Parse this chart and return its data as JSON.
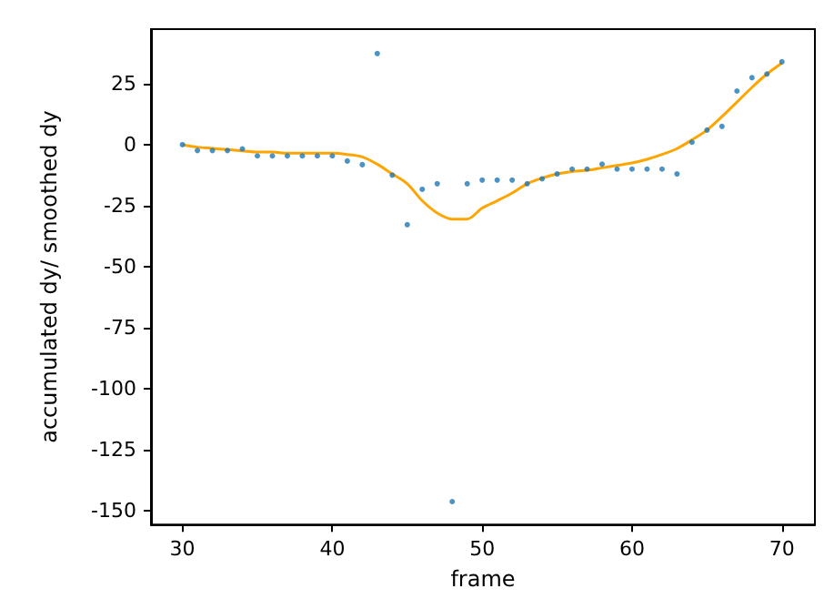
{
  "chart_data": {
    "type": "scatter",
    "xlabel": "frame",
    "ylabel": "accumulated dy/ smoothed dy",
    "x": [
      30,
      31,
      32,
      33,
      34,
      35,
      36,
      37,
      38,
      39,
      40,
      41,
      42,
      43,
      44,
      45,
      46,
      47,
      48,
      49,
      50,
      51,
      52,
      53,
      54,
      55,
      56,
      57,
      58,
      59,
      60,
      61,
      62,
      63,
      64,
      65,
      66,
      67,
      68,
      69,
      70
    ],
    "series": [
      {
        "color": "#1f77b4",
        "marker": "circle",
        "values": [
          0,
          -2.4,
          -2.4,
          -2.4,
          -1.7,
          -4.6,
          -4.6,
          -4.6,
          -4.6,
          -4.6,
          -4.6,
          -6.7,
          -8.2,
          37.4,
          -12.5,
          -32.8,
          -18.3,
          -16,
          -146.4,
          -16,
          -14.5,
          -14.5,
          -14.5,
          -16,
          -14,
          -12,
          -10,
          -10,
          -8,
          -10,
          -10,
          -10,
          -10,
          -12,
          1,
          6,
          7.5,
          22,
          27.5,
          29,
          34
        ]
      },
      {
        "type": "line",
        "color": "#ffa500",
        "marker": "none",
        "line_style": "solid",
        "values": [
          0,
          -1,
          -1.5,
          -2,
          -2.5,
          -3,
          -3,
          -3.5,
          -3.5,
          -3.5,
          -3.5,
          -4,
          -5,
          -8,
          -12,
          -16,
          -23,
          -28,
          -30.5,
          -30.5,
          -26,
          -23,
          -19.8,
          -16,
          -13.7,
          -12,
          -11,
          -10.5,
          -9.5,
          -8.5,
          -7.5,
          -6,
          -4,
          -1.6,
          2,
          6,
          11.5,
          17.5,
          23.5,
          29,
          33.5
        ]
      }
    ],
    "xlim": [
      27.9,
      72.2
    ],
    "ylim": [
      -155.8,
      47.4
    ],
    "xticks": [
      30,
      40,
      50,
      60,
      70
    ],
    "yticks": [
      -150,
      -125,
      -100,
      -75,
      -50,
      -25,
      0,
      25
    ],
    "grid": false
  }
}
